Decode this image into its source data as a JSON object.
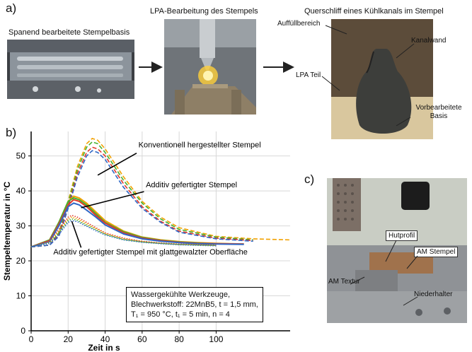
{
  "panels": {
    "a": {
      "letter": "a)",
      "images": [
        {
          "caption": "Spanend bearbeitete Stempelbasis",
          "content": "machined punch base photo"
        },
        {
          "caption": "LPA-Bearbeitung des Stempels",
          "content": "laser powder deposition photo"
        },
        {
          "caption": "Querschliff eines Kühlkanals im Stempel",
          "content": "cross section micrograph"
        }
      ],
      "annotations": [
        "Auffüllbereich",
        "Kanalwand",
        "LPA Teil",
        "Vorbearbeitete Basis"
      ]
    },
    "b": {
      "letter": "b)"
    },
    "c": {
      "letter": "c)",
      "annotations": [
        "Hutprofil",
        "AM Stempel",
        "AM Textur",
        "Niederhalter"
      ]
    }
  },
  "chart_data": {
    "type": "line",
    "xlabel": "Zeit in s",
    "ylabel": "Stempeltemperatur in °C",
    "xlim": [
      0,
      140
    ],
    "ylim": [
      0,
      57
    ],
    "xticks": [
      0,
      20,
      40,
      60,
      80,
      100
    ],
    "yticks": [
      0,
      10,
      20,
      30,
      40,
      50
    ],
    "grid": true,
    "annotations": [
      "Konventionell hergestellter Stempel",
      "Additiv gefertigter Stempel",
      "Additiv gefertigter Stempel mit glattgewalzter Oberfläche"
    ],
    "info_lines": [
      "Wassergekühlte Werkzeuge,",
      "Blechwerkstoff: 22MnB5, t = 1,5 mm,",
      "T₁ = 950 °C, t₁ = 5 min, n = 4"
    ],
    "series": [
      {
        "group": "Konventionell hergestellter Stempel",
        "style": "dashed",
        "color": "#f2a100",
        "x": [
          0,
          10,
          15,
          20,
          25,
          30,
          33,
          36,
          40,
          50,
          60,
          70,
          80,
          100,
          120,
          140
        ],
        "y": [
          24,
          24.5,
          28,
          37,
          47,
          53.5,
          55,
          54.5,
          52,
          44,
          37,
          32.5,
          29.5,
          27,
          26.3,
          26
        ]
      },
      {
        "group": "Konventionell hergestellter Stempel",
        "style": "dashed",
        "color": "#46b12f",
        "x": [
          0,
          10,
          15,
          20,
          25,
          30,
          33,
          36,
          40,
          50,
          60,
          70,
          80,
          100,
          120
        ],
        "y": [
          24,
          24.5,
          28,
          36.5,
          46,
          52.5,
          54,
          53.5,
          51,
          43,
          36.5,
          32,
          29,
          26.8,
          26
        ]
      },
      {
        "group": "Konventionell hergestellter Stempel",
        "style": "dashed",
        "color": "#e0392b",
        "x": [
          0,
          10,
          15,
          20,
          25,
          30,
          33,
          36,
          40,
          50,
          60,
          70,
          80,
          100,
          120
        ],
        "y": [
          24,
          24.5,
          27.5,
          35.5,
          45,
          51,
          52.5,
          52,
          50,
          42,
          35.5,
          31.3,
          28.5,
          26.5,
          25.8
        ]
      },
      {
        "group": "Konventionell hergestellter Stempel",
        "style": "dashed",
        "color": "#2f67c6",
        "x": [
          0,
          10,
          15,
          20,
          25,
          30,
          33,
          36,
          40,
          50,
          60,
          70,
          80,
          100,
          120
        ],
        "y": [
          24,
          24.5,
          27,
          35,
          44,
          50,
          51.5,
          51,
          49,
          41,
          35,
          31,
          28.2,
          26.3,
          25.6
        ]
      },
      {
        "group": "Additiv gefertigter Stempel",
        "style": "solid",
        "color": "#f2a100",
        "x": [
          0,
          10,
          15,
          20,
          23,
          26,
          30,
          35,
          40,
          50,
          60,
          70,
          80,
          90,
          100,
          115
        ],
        "y": [
          24,
          26,
          31,
          37,
          38.5,
          38,
          36.5,
          34,
          31.5,
          28.5,
          26.8,
          26,
          25.5,
          25.2,
          25,
          24.8
        ]
      },
      {
        "group": "Additiv gefertigter Stempel",
        "style": "solid",
        "color": "#46b12f",
        "x": [
          0,
          10,
          15,
          20,
          23,
          26,
          30,
          35,
          40,
          50,
          60,
          70,
          80,
          90,
          100,
          115
        ],
        "y": [
          24,
          26,
          31,
          37,
          38,
          37.5,
          36,
          33.5,
          31,
          28.3,
          26.7,
          25.9,
          25.4,
          25.1,
          24.9,
          24.8
        ]
      },
      {
        "group": "Additiv gefertigter Stempel",
        "style": "solid",
        "color": "#e0392b",
        "x": [
          0,
          10,
          15,
          20,
          23,
          26,
          30,
          35,
          40,
          50,
          60,
          70,
          80,
          90,
          100,
          115
        ],
        "y": [
          24,
          25.8,
          30.5,
          36,
          37.5,
          37,
          35.5,
          33,
          30.8,
          28,
          26.5,
          25.8,
          25.3,
          25,
          24.9,
          24.8
        ]
      },
      {
        "group": "Additiv gefertigter Stempel",
        "style": "solid",
        "color": "#2f67c6",
        "x": [
          0,
          10,
          15,
          20,
          23,
          26,
          30,
          35,
          40,
          50,
          60,
          70,
          80,
          90,
          100,
          115
        ],
        "y": [
          24,
          25.5,
          30,
          35.5,
          36.5,
          36,
          34.5,
          32.5,
          30.3,
          27.7,
          26.3,
          25.6,
          25.2,
          24.9,
          24.8,
          24.7
        ]
      },
      {
        "group": "Additiv gefertigter Stempel mit glattgewalzter Oberfläche",
        "style": "dotted",
        "color": "#e0392b",
        "x": [
          0,
          10,
          15,
          20,
          22,
          25,
          30,
          35,
          40,
          50,
          60,
          70,
          80,
          100
        ],
        "y": [
          24,
          25.5,
          29,
          32.5,
          33,
          32.5,
          31,
          29.5,
          28,
          26.5,
          25.6,
          25.1,
          24.8,
          24.5
        ]
      },
      {
        "group": "Additiv gefertigter Stempel mit glattgewalzter Oberfläche",
        "style": "dotted",
        "color": "#f2a100",
        "x": [
          0,
          10,
          15,
          20,
          22,
          25,
          30,
          35,
          40,
          50,
          60,
          70,
          80,
          100
        ],
        "y": [
          24,
          25.3,
          28.5,
          32,
          32.5,
          32,
          30.6,
          29.2,
          27.8,
          26.3,
          25.5,
          25,
          24.7,
          24.4
        ]
      },
      {
        "group": "Additiv gefertigter Stempel mit glattgewalzter Oberfläche",
        "style": "dotted",
        "color": "#46b12f",
        "x": [
          0,
          10,
          15,
          20,
          22,
          25,
          30,
          35,
          40,
          50,
          60,
          70,
          80,
          100
        ],
        "y": [
          24,
          25.2,
          28,
          31.5,
          32,
          31.6,
          30.2,
          28.9,
          27.6,
          26.1,
          25.4,
          25,
          24.7,
          24.4
        ]
      },
      {
        "group": "Additiv gefertigter Stempel mit glattgewalzter Oberfläche",
        "style": "dotted",
        "color": "#2f67c6",
        "x": [
          0,
          10,
          15,
          20,
          22,
          25,
          30,
          35,
          40,
          50,
          60,
          70,
          80,
          100
        ],
        "y": [
          24,
          25,
          27.5,
          31,
          31.5,
          31.2,
          29.9,
          28.6,
          27.4,
          26,
          25.3,
          24.9,
          24.6,
          24.3
        ]
      }
    ]
  }
}
